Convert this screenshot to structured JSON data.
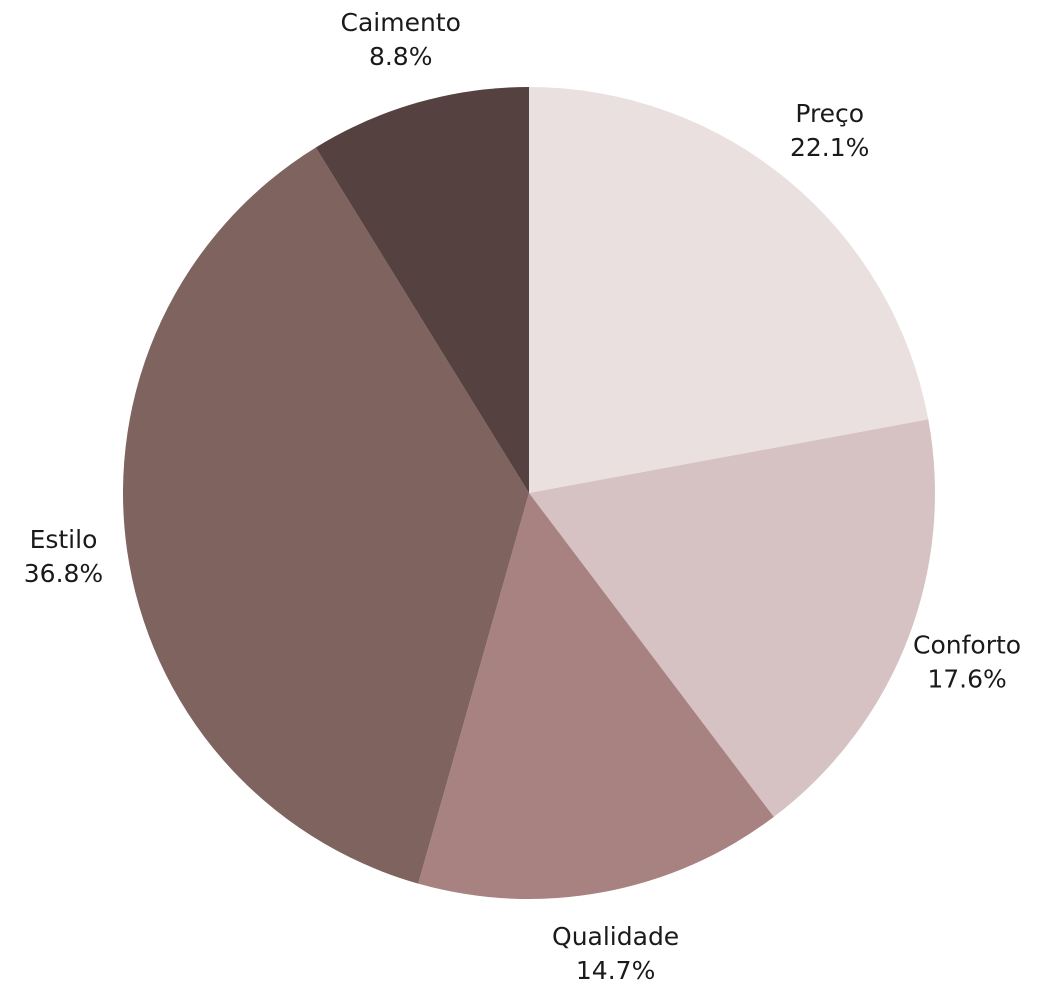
{
  "chart_data": {
    "type": "pie",
    "title": "",
    "start_angle_deg": 0,
    "direction": "clockwise",
    "slices": [
      {
        "label": "Preço",
        "value": 22.1,
        "value_label": "22.1%",
        "color": "#eae0e0"
      },
      {
        "label": "Conforto",
        "value": 17.6,
        "value_label": "17.6%",
        "color": "#d6c2c2"
      },
      {
        "label": "Qualidade",
        "value": 14.7,
        "value_label": "14.7%",
        "color": "#a78280"
      },
      {
        "label": "Estilo",
        "value": 36.8,
        "value_label": "36.8%",
        "color": "#7e635e"
      },
      {
        "label": "Caimento",
        "value": 8.8,
        "value_label": "8.8%",
        "color": "#554140"
      }
    ],
    "legend": "none"
  }
}
